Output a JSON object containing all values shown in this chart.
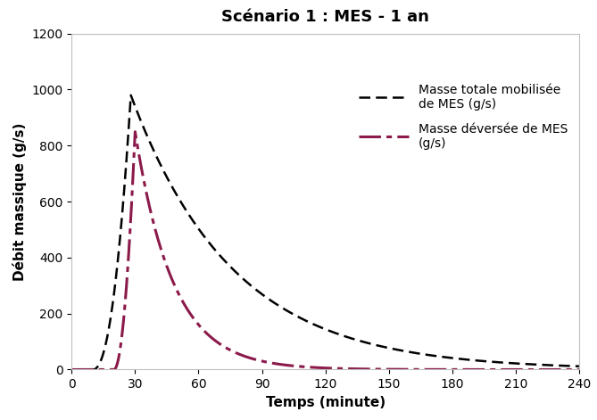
{
  "title": "Scénario 1 : MES - 1 an",
  "xlabel": "Temps (minute)",
  "ylabel": "Débit massique (g/s)",
  "xlim": [
    0,
    240
  ],
  "ylim": [
    0,
    1200
  ],
  "xticks": [
    0,
    30,
    60,
    90,
    120,
    150,
    180,
    210,
    240
  ],
  "yticks": [
    0,
    200,
    400,
    600,
    800,
    1000,
    1200
  ],
  "line1_label": "Masse totale mobilisée\nde MES (g/s)",
  "line2_label": "Masse déversée de MES\n(g/s)",
  "line1_color": "#000000",
  "line2_color": "#8B1A4A",
  "background_color": "#ffffff",
  "title_fontsize": 13,
  "axis_label_fontsize": 11,
  "tick_fontsize": 10,
  "legend_fontsize": 10,
  "line1_peak": 980.0,
  "line1_t_start": 10.0,
  "line1_t_peak": 28.0,
  "line1_t_decay": 48.0,
  "line1_rise_exp": 2.2,
  "line2_peak": 850.0,
  "line2_t_start": 20.0,
  "line2_t_peak": 30.0,
  "line2_t_decay": 18.0,
  "line2_rise_exp": 2.0
}
